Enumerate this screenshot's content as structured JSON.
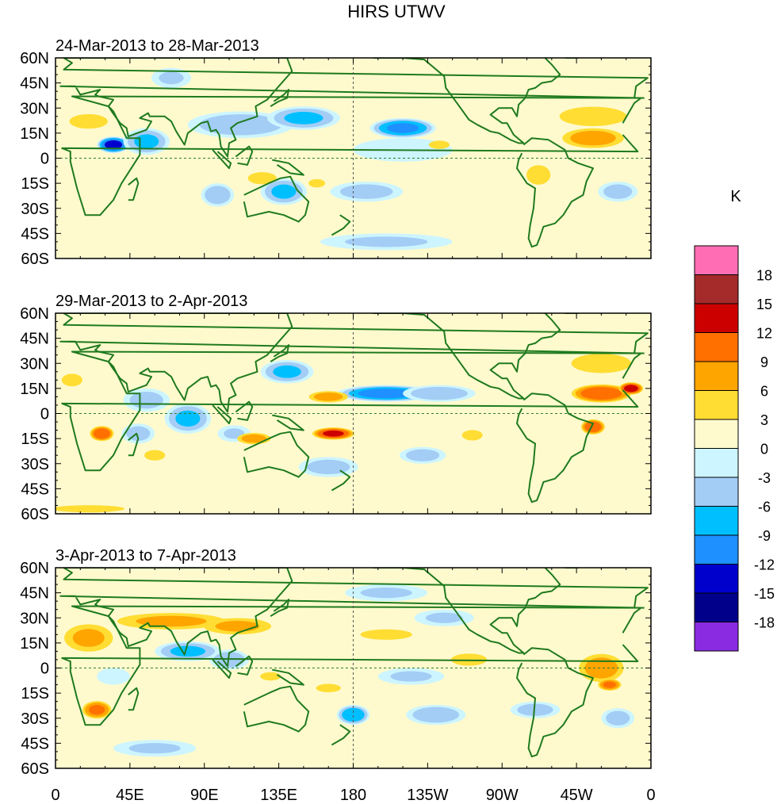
{
  "chart_data": {
    "type": "heatmap",
    "title": "HIRS UTWV",
    "units_label": "K",
    "lat_ticks": [
      "60N",
      "45N",
      "30N",
      "15N",
      "0",
      "15S",
      "30S",
      "45S",
      "60S"
    ],
    "lat_values": [
      60,
      45,
      30,
      15,
      0,
      -15,
      -30,
      -45,
      -60
    ],
    "lon_ticks": [
      "0",
      "45E",
      "90E",
      "135E",
      "180",
      "135W",
      "90W",
      "45W",
      "0"
    ],
    "lon_values": [
      0,
      45,
      90,
      135,
      180,
      225,
      270,
      315,
      360
    ],
    "xlim": [
      0,
      360
    ],
    "ylim": [
      -60,
      60
    ],
    "colorbar": {
      "labels": [
        "18",
        "15",
        "12",
        "9",
        "6",
        "3",
        "0",
        "-3",
        "-6",
        "-9",
        "-12",
        "-15",
        "-18"
      ],
      "bins": [
        {
          "range": "> 18",
          "color": "#ff6eb4"
        },
        {
          "range": "15 to 18",
          "color": "#a52a2a"
        },
        {
          "range": "12 to 15",
          "color": "#cd0000"
        },
        {
          "range": "9 to 12",
          "color": "#ff7000"
        },
        {
          "range": "6 to 9",
          "color": "#ffa500"
        },
        {
          "range": "3 to 6",
          "color": "#ffdd33"
        },
        {
          "range": "0 to 3",
          "color": "#fffacd"
        },
        {
          "range": "-3 to 0",
          "color": "#cdf5ff"
        },
        {
          "range": "-6 to -3",
          "color": "#a3cdf5"
        },
        {
          "range": "-9 to -6",
          "color": "#00bfff"
        },
        {
          "range": "-12 to -9",
          "color": "#1e90ff"
        },
        {
          "range": "-15 to -12",
          "color": "#0000cd"
        },
        {
          "range": "-18 to -15",
          "color": "#00008b"
        },
        {
          "range": "< -18",
          "color": "#8a2be2"
        }
      ]
    },
    "panels": [
      {
        "label": "24-Mar-2013 to 28-Mar-2013",
        "anomalies": [
          {
            "lon": 35,
            "lat": 8,
            "a": -14,
            "rx": 10,
            "ry": 5
          },
          {
            "lon": 55,
            "lat": 10,
            "a": -7,
            "rx": 14,
            "ry": 8
          },
          {
            "lon": 112,
            "lat": 20,
            "a": -6,
            "rx": 32,
            "ry": 8
          },
          {
            "lon": 150,
            "lat": 24,
            "a": -7,
            "rx": 22,
            "ry": 7
          },
          {
            "lon": 210,
            "lat": 18,
            "a": -10,
            "rx": 20,
            "ry": 6
          },
          {
            "lon": 138,
            "lat": -20,
            "a": -7,
            "rx": 14,
            "ry": 8
          },
          {
            "lon": 98,
            "lat": -22,
            "a": -6,
            "rx": 10,
            "ry": 7
          },
          {
            "lon": 188,
            "lat": -20,
            "a": -5,
            "rx": 22,
            "ry": 6
          },
          {
            "lon": 340,
            "lat": -20,
            "a": -5,
            "rx": 12,
            "ry": 6
          },
          {
            "lon": 200,
            "lat": -50,
            "a": -4,
            "rx": 40,
            "ry": 5
          },
          {
            "lon": 70,
            "lat": 48,
            "a": -4,
            "rx": 12,
            "ry": 6
          },
          {
            "lon": 210,
            "lat": 5,
            "a": -3,
            "rx": 30,
            "ry": 7
          },
          {
            "lon": 20,
            "lat": 22,
            "a": 5,
            "rx": 16,
            "ry": 6
          },
          {
            "lon": 125,
            "lat": -12,
            "a": 5,
            "rx": 12,
            "ry": 5
          },
          {
            "lon": 158,
            "lat": -15,
            "a": 4,
            "rx": 8,
            "ry": 4
          },
          {
            "lon": 325,
            "lat": 12,
            "a": 8,
            "rx": 22,
            "ry": 7
          },
          {
            "lon": 325,
            "lat": 25,
            "a": 5,
            "rx": 28,
            "ry": 8
          },
          {
            "lon": 292,
            "lat": -10,
            "a": 5,
            "rx": 10,
            "ry": 8
          },
          {
            "lon": 232,
            "lat": 8,
            "a": 4,
            "rx": 10,
            "ry": 4
          },
          {
            "lon": 245,
            "lat": -5,
            "a": 3,
            "rx": 12,
            "ry": 4
          },
          {
            "lon": 105,
            "lat": 0,
            "a": 3,
            "rx": 15,
            "ry": 5
          }
        ]
      },
      {
        "label": "29-Mar-2013 to 2-Apr-2013",
        "anomalies": [
          {
            "lon": 200,
            "lat": 12,
            "a": -11,
            "rx": 30,
            "ry": 5
          },
          {
            "lon": 232,
            "lat": 12,
            "a": -6,
            "rx": 22,
            "ry": 5
          },
          {
            "lon": 140,
            "lat": 25,
            "a": -7,
            "rx": 16,
            "ry": 7
          },
          {
            "lon": 80,
            "lat": -3,
            "a": -7,
            "rx": 14,
            "ry": 9
          },
          {
            "lon": 55,
            "lat": 8,
            "a": -5,
            "rx": 14,
            "ry": 7
          },
          {
            "lon": 50,
            "lat": -12,
            "a": -5,
            "rx": 10,
            "ry": 6
          },
          {
            "lon": 165,
            "lat": -32,
            "a": -5,
            "rx": 18,
            "ry": 6
          },
          {
            "lon": 222,
            "lat": -25,
            "a": -5,
            "rx": 14,
            "ry": 5
          },
          {
            "lon": 108,
            "lat": -12,
            "a": -4,
            "rx": 10,
            "ry": 5
          },
          {
            "lon": 330,
            "lat": 12,
            "a": 12,
            "rx": 20,
            "ry": 6
          },
          {
            "lon": 348,
            "lat": 15,
            "a": 14,
            "rx": 8,
            "ry": 4
          },
          {
            "lon": 325,
            "lat": -8,
            "a": 12,
            "rx": 8,
            "ry": 5
          },
          {
            "lon": 168,
            "lat": -12,
            "a": 13,
            "rx": 14,
            "ry": 4
          },
          {
            "lon": 28,
            "lat": -12,
            "a": 12,
            "rx": 8,
            "ry": 5
          },
          {
            "lon": 120,
            "lat": -15,
            "a": 8,
            "rx": 12,
            "ry": 4
          },
          {
            "lon": 165,
            "lat": 10,
            "a": 8,
            "rx": 14,
            "ry": 4
          },
          {
            "lon": 330,
            "lat": 30,
            "a": 5,
            "rx": 25,
            "ry": 8
          },
          {
            "lon": 252,
            "lat": -13,
            "a": 6,
            "rx": 8,
            "ry": 4
          },
          {
            "lon": 10,
            "lat": 20,
            "a": 4,
            "rx": 10,
            "ry": 6
          },
          {
            "lon": 60,
            "lat": -25,
            "a": 4,
            "rx": 10,
            "ry": 5
          },
          {
            "lon": 20,
            "lat": -57,
            "a": 5,
            "rx": 30,
            "ry": 3
          },
          {
            "lon": 180,
            "lat": -45,
            "a": 3,
            "rx": 30,
            "ry": 5
          }
        ]
      },
      {
        "label": "3-Apr-2013 to 7-Apr-2013",
        "anomalies": [
          {
            "lon": 70,
            "lat": 28,
            "a": 7,
            "rx": 40,
            "ry": 6
          },
          {
            "lon": 110,
            "lat": 25,
            "a": 7,
            "rx": 25,
            "ry": 6
          },
          {
            "lon": 20,
            "lat": 18,
            "a": 7,
            "rx": 18,
            "ry": 10
          },
          {
            "lon": 25,
            "lat": -25,
            "a": 10,
            "rx": 10,
            "ry": 6
          },
          {
            "lon": 330,
            "lat": 0,
            "a": 8,
            "rx": 16,
            "ry": 10
          },
          {
            "lon": 335,
            "lat": -10,
            "a": 10,
            "rx": 8,
            "ry": 4
          },
          {
            "lon": 250,
            "lat": 5,
            "a": 5,
            "rx": 15,
            "ry": 5
          },
          {
            "lon": 200,
            "lat": 20,
            "a": 4,
            "rx": 25,
            "ry": 5
          },
          {
            "lon": 165,
            "lat": -12,
            "a": 4,
            "rx": 12,
            "ry": 4
          },
          {
            "lon": 130,
            "lat": -5,
            "a": 4,
            "rx": 10,
            "ry": 4
          },
          {
            "lon": 80,
            "lat": 10,
            "a": -7,
            "rx": 20,
            "ry": 6
          },
          {
            "lon": 105,
            "lat": 5,
            "a": -6,
            "rx": 12,
            "ry": 6
          },
          {
            "lon": 180,
            "lat": -28,
            "a": -9,
            "rx": 10,
            "ry": 6
          },
          {
            "lon": 230,
            "lat": -28,
            "a": -6,
            "rx": 18,
            "ry": 6
          },
          {
            "lon": 290,
            "lat": -25,
            "a": -5,
            "rx": 15,
            "ry": 5
          },
          {
            "lon": 215,
            "lat": -5,
            "a": -4,
            "rx": 20,
            "ry": 5
          },
          {
            "lon": 235,
            "lat": 30,
            "a": -4,
            "rx": 18,
            "ry": 5
          },
          {
            "lon": 200,
            "lat": 45,
            "a": -4,
            "rx": 25,
            "ry": 5
          },
          {
            "lon": 340,
            "lat": -30,
            "a": -5,
            "rx": 10,
            "ry": 6
          },
          {
            "lon": 60,
            "lat": -48,
            "a": -4,
            "rx": 25,
            "ry": 5
          },
          {
            "lon": 35,
            "lat": -5,
            "a": -3,
            "rx": 10,
            "ry": 5
          }
        ]
      }
    ]
  }
}
